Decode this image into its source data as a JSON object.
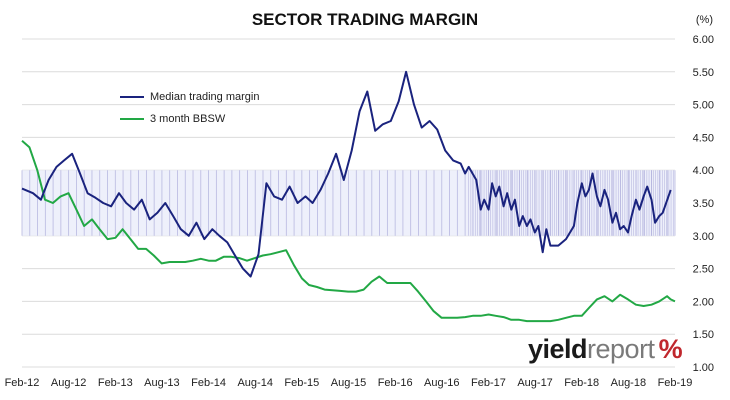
{
  "colors": {
    "margin": "#1a237e",
    "bbsw": "#22a845",
    "grid": "#dcdcdc",
    "band": "#b8b8e0"
  },
  "brand": {
    "part1": "yield",
    "part2": "report",
    "part3": "%"
  },
  "chart_data": {
    "type": "line",
    "title": "SECTOR TRADING MARGIN",
    "ylabel": "(%)",
    "ylim": [
      1.0,
      6.0
    ],
    "yticks": [
      "1.00",
      "1.50",
      "2.00",
      "2.50",
      "3.00",
      "3.50",
      "4.00",
      "4.50",
      "5.00",
      "5.50",
      "6.00"
    ],
    "xlim": [
      "2012-02-01",
      "2019-02-01"
    ],
    "xticks": [
      "Feb-12",
      "Aug-12",
      "Feb-13",
      "Aug-13",
      "Feb-14",
      "Aug-14",
      "Feb-15",
      "Aug-15",
      "Feb-16",
      "Aug-16",
      "Feb-17",
      "Aug-17",
      "Feb-18",
      "Aug-18",
      "Feb-19"
    ],
    "grid": true,
    "legend_position": "top-left",
    "band": {
      "low": 3.0,
      "high": 4.0,
      "x_start": "2012-02-01",
      "x_end": "2019-02-01"
    },
    "series": [
      {
        "name": "Median trading margin",
        "points": [
          [
            "2012-02-01",
            3.72
          ],
          [
            "2012-03-15",
            3.65
          ],
          [
            "2012-04-15",
            3.55
          ],
          [
            "2012-05-15",
            3.85
          ],
          [
            "2012-06-15",
            4.05
          ],
          [
            "2012-07-15",
            4.15
          ],
          [
            "2012-08-15",
            4.25
          ],
          [
            "2012-09-15",
            3.95
          ],
          [
            "2012-10-15",
            3.65
          ],
          [
            "2012-11-15",
            3.58
          ],
          [
            "2012-12-15",
            3.5
          ],
          [
            "2013-01-15",
            3.45
          ],
          [
            "2013-02-15",
            3.65
          ],
          [
            "2013-03-15",
            3.5
          ],
          [
            "2013-04-15",
            3.4
          ],
          [
            "2013-05-15",
            3.55
          ],
          [
            "2013-06-15",
            3.25
          ],
          [
            "2013-07-15",
            3.35
          ],
          [
            "2013-08-15",
            3.5
          ],
          [
            "2013-09-15",
            3.3
          ],
          [
            "2013-10-15",
            3.1
          ],
          [
            "2013-11-15",
            3.0
          ],
          [
            "2013-12-15",
            3.2
          ],
          [
            "2014-01-15",
            2.95
          ],
          [
            "2014-02-15",
            3.1
          ],
          [
            "2014-03-15",
            3.0
          ],
          [
            "2014-04-15",
            2.9
          ],
          [
            "2014-05-15",
            2.7
          ],
          [
            "2014-06-15",
            2.5
          ],
          [
            "2014-07-15",
            2.38
          ],
          [
            "2014-08-15",
            2.72
          ],
          [
            "2014-09-15",
            3.8
          ],
          [
            "2014-10-15",
            3.6
          ],
          [
            "2014-11-15",
            3.55
          ],
          [
            "2014-12-15",
            3.75
          ],
          [
            "2015-01-15",
            3.5
          ],
          [
            "2015-02-15",
            3.6
          ],
          [
            "2015-03-15",
            3.5
          ],
          [
            "2015-04-15",
            3.7
          ],
          [
            "2015-05-15",
            3.95
          ],
          [
            "2015-06-15",
            4.25
          ],
          [
            "2015-07-15",
            3.85
          ],
          [
            "2015-08-15",
            4.3
          ],
          [
            "2015-09-15",
            4.9
          ],
          [
            "2015-10-15",
            5.2
          ],
          [
            "2015-11-15",
            4.6
          ],
          [
            "2015-12-15",
            4.7
          ],
          [
            "2016-01-15",
            4.75
          ],
          [
            "2016-02-15",
            5.05
          ],
          [
            "2016-03-15",
            5.5
          ],
          [
            "2016-04-15",
            5.0
          ],
          [
            "2016-05-15",
            4.65
          ],
          [
            "2016-06-15",
            4.75
          ],
          [
            "2016-07-15",
            4.62
          ],
          [
            "2016-08-15",
            4.3
          ],
          [
            "2016-09-15",
            4.15
          ],
          [
            "2016-10-15",
            4.1
          ],
          [
            "2016-11-01",
            3.95
          ],
          [
            "2016-11-15",
            4.05
          ],
          [
            "2016-12-15",
            3.85
          ],
          [
            "2017-01-01",
            3.4
          ],
          [
            "2017-01-15",
            3.55
          ],
          [
            "2017-02-01",
            3.4
          ],
          [
            "2017-02-15",
            3.8
          ],
          [
            "2017-03-01",
            3.6
          ],
          [
            "2017-03-15",
            3.75
          ],
          [
            "2017-04-01",
            3.45
          ],
          [
            "2017-04-15",
            3.65
          ],
          [
            "2017-05-01",
            3.4
          ],
          [
            "2017-05-15",
            3.55
          ],
          [
            "2017-06-01",
            3.15
          ],
          [
            "2017-06-15",
            3.3
          ],
          [
            "2017-07-01",
            3.15
          ],
          [
            "2017-07-15",
            3.25
          ],
          [
            "2017-08-01",
            3.05
          ],
          [
            "2017-08-15",
            3.15
          ],
          [
            "2017-09-01",
            2.75
          ],
          [
            "2017-09-15",
            3.1
          ],
          [
            "2017-10-01",
            2.85
          ],
          [
            "2017-11-01",
            2.85
          ],
          [
            "2017-12-01",
            2.95
          ],
          [
            "2018-01-01",
            3.15
          ],
          [
            "2018-01-15",
            3.5
          ],
          [
            "2018-02-01",
            3.8
          ],
          [
            "2018-02-15",
            3.6
          ],
          [
            "2018-03-01",
            3.7
          ],
          [
            "2018-03-15",
            3.95
          ],
          [
            "2018-04-01",
            3.6
          ],
          [
            "2018-04-15",
            3.45
          ],
          [
            "2018-05-01",
            3.7
          ],
          [
            "2018-05-15",
            3.55
          ],
          [
            "2018-06-01",
            3.2
          ],
          [
            "2018-06-15",
            3.35
          ],
          [
            "2018-07-01",
            3.1
          ],
          [
            "2018-07-15",
            3.15
          ],
          [
            "2018-08-01",
            3.05
          ],
          [
            "2018-08-15",
            3.3
          ],
          [
            "2018-09-01",
            3.55
          ],
          [
            "2018-09-15",
            3.4
          ],
          [
            "2018-10-01",
            3.6
          ],
          [
            "2018-10-15",
            3.75
          ],
          [
            "2018-11-01",
            3.55
          ],
          [
            "2018-11-15",
            3.2
          ],
          [
            "2018-12-01",
            3.3
          ],
          [
            "2018-12-15",
            3.35
          ],
          [
            "2019-01-15",
            3.7
          ]
        ]
      },
      {
        "name": "3 month BBSW",
        "points": [
          [
            "2012-02-01",
            4.45
          ],
          [
            "2012-03-01",
            4.35
          ],
          [
            "2012-04-01",
            4.0
          ],
          [
            "2012-05-01",
            3.55
          ],
          [
            "2012-06-01",
            3.5
          ],
          [
            "2012-07-01",
            3.6
          ],
          [
            "2012-08-01",
            3.65
          ],
          [
            "2012-09-01",
            3.4
          ],
          [
            "2012-10-01",
            3.15
          ],
          [
            "2012-11-01",
            3.25
          ],
          [
            "2012-12-01",
            3.1
          ],
          [
            "2013-01-01",
            2.95
          ],
          [
            "2013-02-01",
            2.97
          ],
          [
            "2013-03-01",
            3.1
          ],
          [
            "2013-04-01",
            2.95
          ],
          [
            "2013-05-01",
            2.8
          ],
          [
            "2013-06-01",
            2.8
          ],
          [
            "2013-07-01",
            2.7
          ],
          [
            "2013-08-01",
            2.58
          ],
          [
            "2013-09-01",
            2.6
          ],
          [
            "2013-10-01",
            2.6
          ],
          [
            "2013-11-01",
            2.6
          ],
          [
            "2013-12-01",
            2.62
          ],
          [
            "2014-01-01",
            2.65
          ],
          [
            "2014-02-01",
            2.62
          ],
          [
            "2014-03-01",
            2.62
          ],
          [
            "2014-04-01",
            2.68
          ],
          [
            "2014-05-01",
            2.68
          ],
          [
            "2014-06-01",
            2.66
          ],
          [
            "2014-07-01",
            2.62
          ],
          [
            "2014-08-01",
            2.66
          ],
          [
            "2014-09-01",
            2.7
          ],
          [
            "2014-10-01",
            2.72
          ],
          [
            "2014-11-01",
            2.75
          ],
          [
            "2014-12-01",
            2.78
          ],
          [
            "2015-01-01",
            2.55
          ],
          [
            "2015-02-01",
            2.35
          ],
          [
            "2015-03-01",
            2.25
          ],
          [
            "2015-04-01",
            2.22
          ],
          [
            "2015-05-01",
            2.18
          ],
          [
            "2015-06-01",
            2.17
          ],
          [
            "2015-07-01",
            2.16
          ],
          [
            "2015-08-01",
            2.15
          ],
          [
            "2015-09-01",
            2.15
          ],
          [
            "2015-10-01",
            2.18
          ],
          [
            "2015-11-01",
            2.3
          ],
          [
            "2015-12-01",
            2.38
          ],
          [
            "2016-01-01",
            2.28
          ],
          [
            "2016-02-01",
            2.28
          ],
          [
            "2016-03-01",
            2.28
          ],
          [
            "2016-04-01",
            2.28
          ],
          [
            "2016-05-01",
            2.15
          ],
          [
            "2016-06-01",
            2.0
          ],
          [
            "2016-07-01",
            1.85
          ],
          [
            "2016-08-01",
            1.75
          ],
          [
            "2016-09-01",
            1.75
          ],
          [
            "2016-10-01",
            1.75
          ],
          [
            "2016-11-01",
            1.76
          ],
          [
            "2016-12-01",
            1.78
          ],
          [
            "2017-01-01",
            1.78
          ],
          [
            "2017-02-01",
            1.8
          ],
          [
            "2017-03-01",
            1.78
          ],
          [
            "2017-04-01",
            1.76
          ],
          [
            "2017-05-01",
            1.72
          ],
          [
            "2017-06-01",
            1.72
          ],
          [
            "2017-07-01",
            1.7
          ],
          [
            "2017-08-01",
            1.7
          ],
          [
            "2017-09-01",
            1.7
          ],
          [
            "2017-10-01",
            1.7
          ],
          [
            "2017-11-01",
            1.72
          ],
          [
            "2017-12-01",
            1.75
          ],
          [
            "2018-01-01",
            1.78
          ],
          [
            "2018-02-01",
            1.78
          ],
          [
            "2018-03-01",
            1.9
          ],
          [
            "2018-04-01",
            2.03
          ],
          [
            "2018-05-01",
            2.08
          ],
          [
            "2018-06-01",
            2.0
          ],
          [
            "2018-07-01",
            2.1
          ],
          [
            "2018-08-01",
            2.03
          ],
          [
            "2018-09-01",
            1.95
          ],
          [
            "2018-10-01",
            1.93
          ],
          [
            "2018-11-01",
            1.95
          ],
          [
            "2018-12-01",
            2.0
          ],
          [
            "2019-01-01",
            2.08
          ],
          [
            "2019-01-15",
            2.03
          ],
          [
            "2019-02-01",
            2.0
          ]
        ]
      }
    ]
  }
}
